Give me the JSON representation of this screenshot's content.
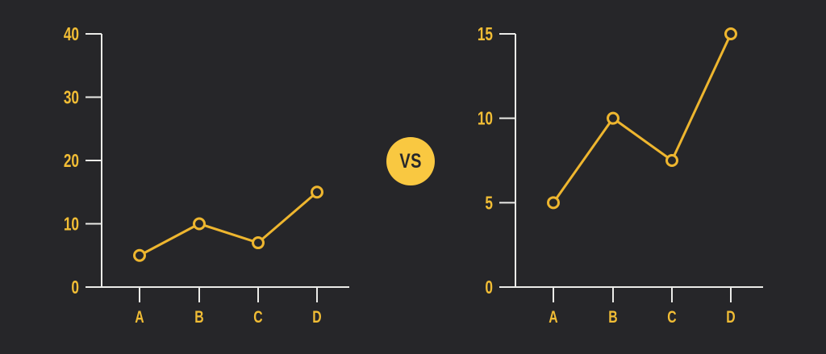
{
  "colors": {
    "background": "#262629",
    "accent": "#EEB62F",
    "label": "#F1BD35",
    "axis": "#EBEBE8",
    "badge_bg": "#F9C841",
    "badge_text": "#28282B"
  },
  "vs_badge": {
    "label": "VS"
  },
  "chart_data": [
    {
      "type": "line",
      "name": "left-chart",
      "categories": [
        "A",
        "B",
        "C",
        "D"
      ],
      "values": [
        5,
        10,
        7,
        15
      ],
      "yticks": [
        0,
        10,
        20,
        30,
        40
      ],
      "ylim": [
        0,
        40
      ],
      "grid": false,
      "legend": "none",
      "marker": "open-circle"
    },
    {
      "type": "line",
      "name": "right-chart",
      "categories": [
        "A",
        "B",
        "C",
        "D"
      ],
      "values": [
        5,
        10,
        7.5,
        15
      ],
      "yticks": [
        0,
        5,
        10,
        15
      ],
      "ylim": [
        0,
        15
      ],
      "grid": false,
      "legend": "none",
      "marker": "open-circle"
    }
  ]
}
